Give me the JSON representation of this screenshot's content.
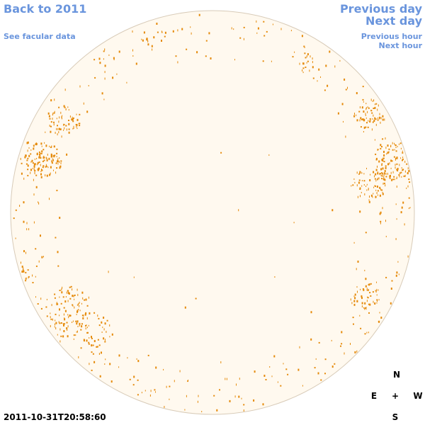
{
  "nav": {
    "back_label": "Back to 2011",
    "facular_label": "See facular data",
    "previous_day_label": "Previous day",
    "next_day_label": "Next day",
    "previous_hour_label": "Previous hour",
    "next_hour_label": "Next hour"
  },
  "timestamp": "2011-10-31T20:58:60",
  "compass": {
    "north": "N",
    "east": "E",
    "center": "+",
    "west": "W",
    "south": "S"
  },
  "colors": {
    "link": "#6a95dd",
    "disk_fill": "#fff9ef",
    "disk_edge": "#d8cbb8",
    "facula": "#e58a0a"
  }
}
